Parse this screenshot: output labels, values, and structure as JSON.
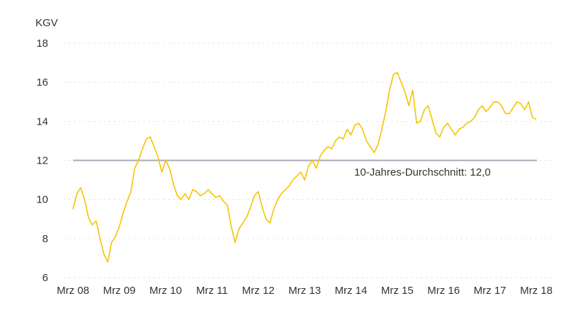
{
  "chart_data": {
    "type": "line",
    "ylabel": "KGV",
    "ylim": [
      6,
      18
    ],
    "yticks": [
      "6",
      "8",
      "10",
      "12",
      "14",
      "16",
      "18"
    ],
    "xticks": [
      "Mrz 08",
      "Mrz 09",
      "Mrz 10",
      "Mrz 11",
      "Mrz 12",
      "Mrz 13",
      "Mrz 14",
      "Mrz 15",
      "Mrz 16",
      "Mrz 17",
      "Mrz 18"
    ],
    "grid": "horizontal dashed",
    "series": [
      {
        "color": "#f5c400",
        "x": [
          "2008-03",
          "2008-04",
          "2008-05",
          "2008-06",
          "2008-07",
          "2008-08",
          "2008-09",
          "2008-10",
          "2008-11",
          "2008-12",
          "2009-01",
          "2009-02",
          "2009-03",
          "2009-04",
          "2009-05",
          "2009-06",
          "2009-07",
          "2009-08",
          "2009-09",
          "2009-10",
          "2009-11",
          "2009-12",
          "2010-01",
          "2010-02",
          "2010-03",
          "2010-04",
          "2010-05",
          "2010-06",
          "2010-07",
          "2010-08",
          "2010-09",
          "2010-10",
          "2010-11",
          "2010-12",
          "2011-01",
          "2011-02",
          "2011-03",
          "2011-04",
          "2011-05",
          "2011-06",
          "2011-07",
          "2011-08",
          "2011-09",
          "2011-10",
          "2011-11",
          "2011-12",
          "2012-01",
          "2012-02",
          "2012-03",
          "2012-04",
          "2012-05",
          "2012-06",
          "2012-07",
          "2012-08",
          "2012-09",
          "2012-10",
          "2012-11",
          "2012-12",
          "2013-01",
          "2013-02",
          "2013-03",
          "2013-04",
          "2013-05",
          "2013-06",
          "2013-07",
          "2013-08",
          "2013-09",
          "2013-10",
          "2013-11",
          "2013-12",
          "2014-01",
          "2014-02",
          "2014-03",
          "2014-04",
          "2014-05",
          "2014-06",
          "2014-07",
          "2014-08",
          "2014-09",
          "2014-10",
          "2014-11",
          "2014-12",
          "2015-01",
          "2015-02",
          "2015-03",
          "2015-04",
          "2015-05",
          "2015-06",
          "2015-07",
          "2015-08",
          "2015-09",
          "2015-10",
          "2015-11",
          "2015-12",
          "2016-01",
          "2016-02",
          "2016-03",
          "2016-04",
          "2016-05",
          "2016-06",
          "2016-07",
          "2016-08",
          "2016-09",
          "2016-10",
          "2016-11",
          "2016-12",
          "2017-01",
          "2017-02",
          "2017-03",
          "2017-04",
          "2017-05",
          "2017-06",
          "2017-07",
          "2017-08",
          "2017-09",
          "2017-10",
          "2017-11",
          "2017-12",
          "2018-01",
          "2018-02",
          "2018-03"
        ],
        "values": [
          9.5,
          10.3,
          10.6,
          10.0,
          9.1,
          8.7,
          8.9,
          8.0,
          7.2,
          6.8,
          7.8,
          8.1,
          8.6,
          9.3,
          9.9,
          10.4,
          11.6,
          12.0,
          12.6,
          13.1,
          13.2,
          12.7,
          12.2,
          11.4,
          12.0,
          11.6,
          10.8,
          10.2,
          10.0,
          10.3,
          10.0,
          10.5,
          10.4,
          10.2,
          10.3,
          10.5,
          10.3,
          10.1,
          10.2,
          9.9,
          9.7,
          8.6,
          7.8,
          8.5,
          8.8,
          9.1,
          9.6,
          10.2,
          10.4,
          9.6,
          9.0,
          8.8,
          9.5,
          10.0,
          10.3,
          10.5,
          10.7,
          11.0,
          11.2,
          11.4,
          11.0,
          11.7,
          12.0,
          11.6,
          12.2,
          12.5,
          12.7,
          12.6,
          13.0,
          13.2,
          13.1,
          13.6,
          13.3,
          13.8,
          13.9,
          13.6,
          13.0,
          12.7,
          12.4,
          12.8,
          13.6,
          14.5,
          15.6,
          16.4,
          16.5,
          16.0,
          15.5,
          14.8,
          15.6,
          13.9,
          14.0,
          14.6,
          14.8,
          14.1,
          13.4,
          13.2,
          13.7,
          13.9,
          13.6,
          13.3,
          13.6,
          13.7,
          13.9,
          14.0,
          14.2,
          14.6,
          14.8,
          14.5,
          14.7,
          15.0,
          15.0,
          14.8,
          14.4,
          14.4,
          14.7,
          15.0,
          14.9,
          14.6,
          15.0,
          14.2,
          14.1
        ]
      }
    ],
    "reference_line": {
      "value": 12.0,
      "label": "10-Jahres-Durchschnitt: 12,0",
      "color": "#a9a9b6"
    }
  }
}
